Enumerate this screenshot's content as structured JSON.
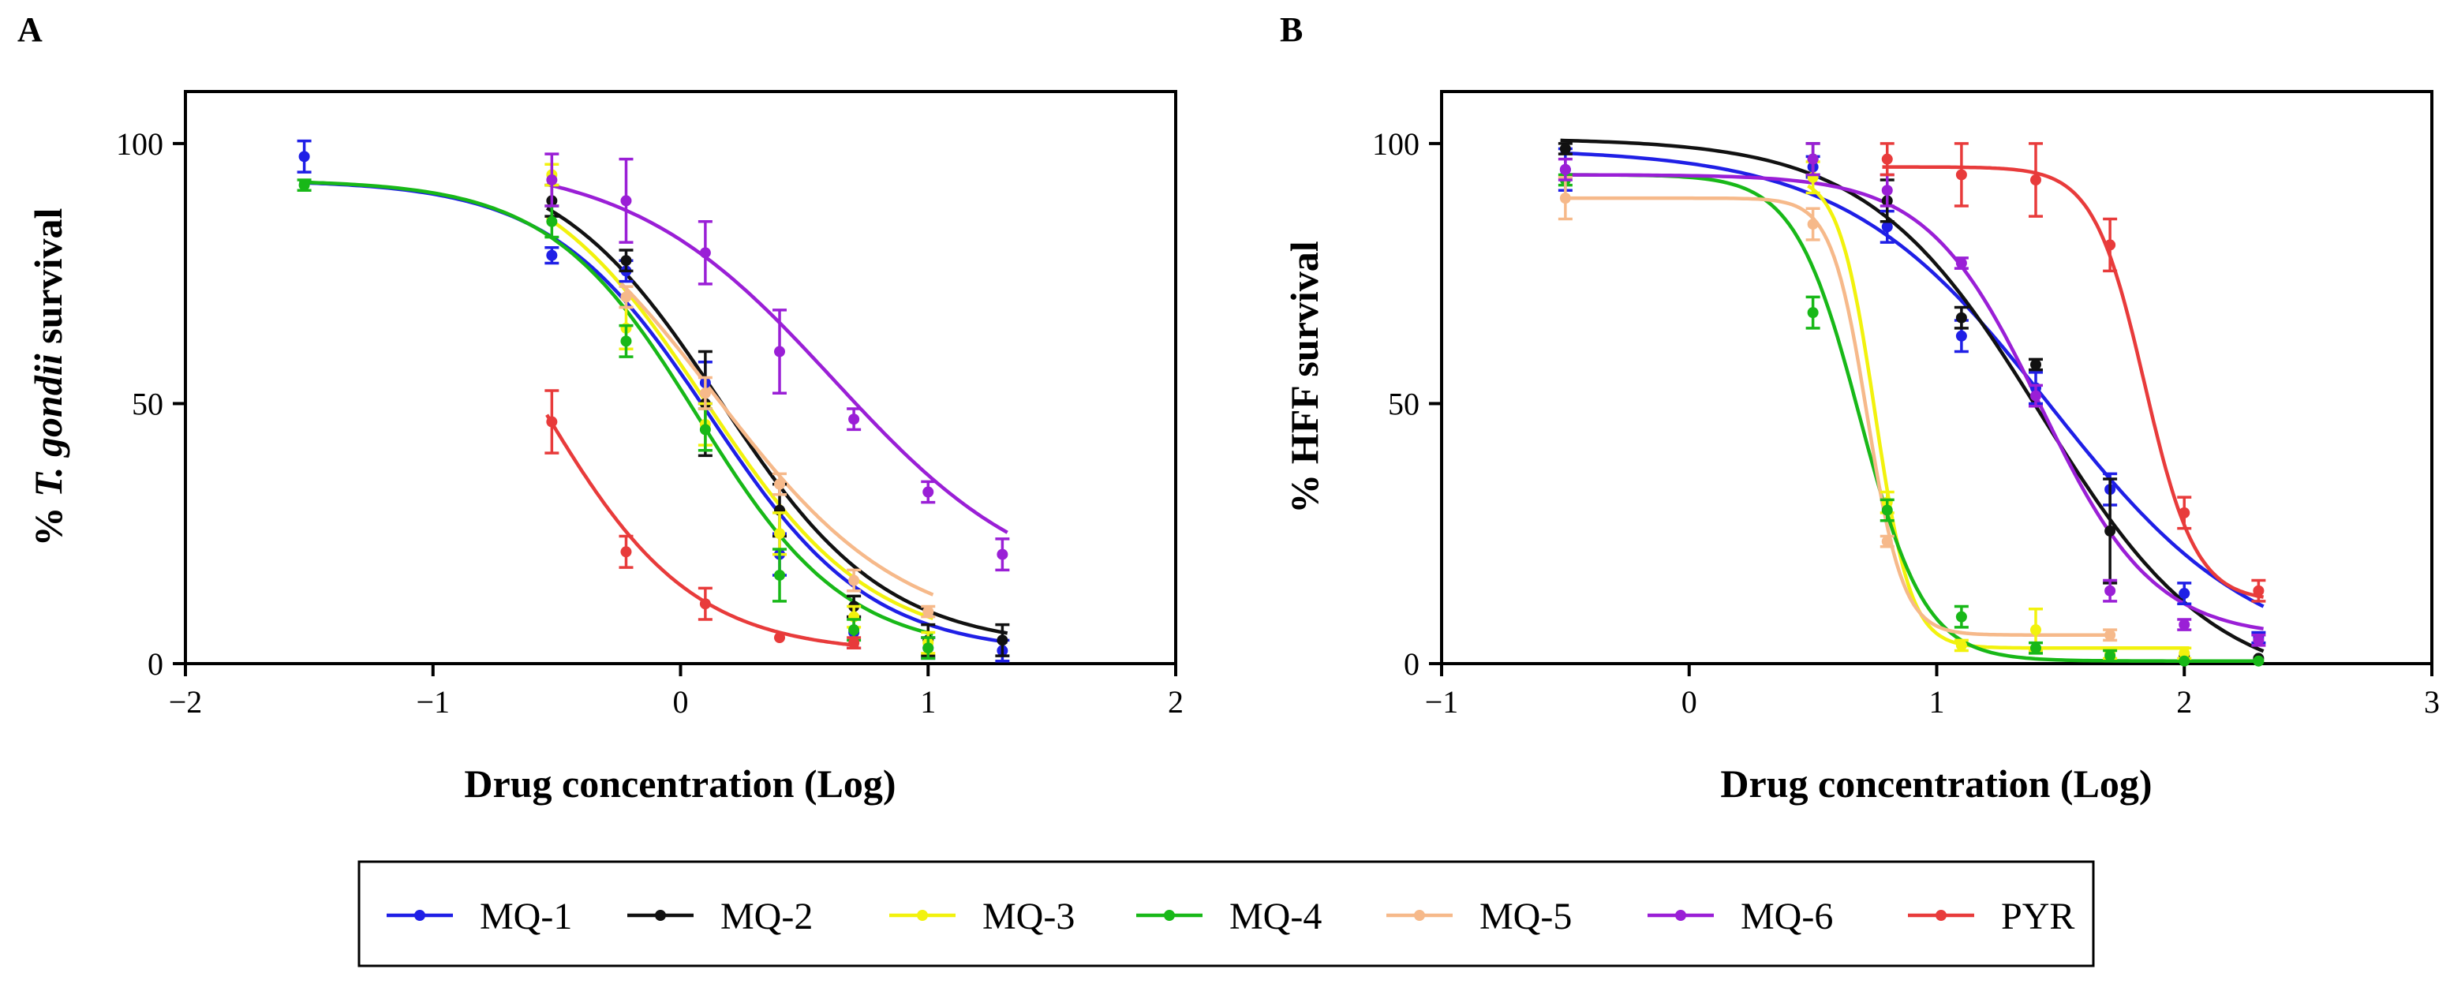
{
  "legend": {
    "items": [
      {
        "label": "MQ-1",
        "color": "#1f1fe6"
      },
      {
        "label": "MQ-2",
        "color": "#111111"
      },
      {
        "label": "MQ-3",
        "color": "#f2f20d"
      },
      {
        "label": "MQ-4",
        "color": "#18b818"
      },
      {
        "label": "MQ-5",
        "color": "#f6b98a"
      },
      {
        "label": "MQ-6",
        "color": "#9a1fd6"
      },
      {
        "label": "PYR",
        "color": "#e83b3b"
      }
    ]
  },
  "chart_data": [
    {
      "panel": "A",
      "type": "scatter",
      "title": "",
      "xlabel": "Drug concentration (Log)",
      "ylabel_prefix": "% ",
      "ylabel_italic": "T. gondii",
      "ylabel_suffix": " survival",
      "xlim": [
        -2,
        2
      ],
      "ylim": [
        0,
        110
      ],
      "xticks": [
        -2,
        -1,
        0,
        1,
        2
      ],
      "xtick_labels": [
        "−2",
        "−1",
        "0",
        "1",
        "2"
      ],
      "yticks": [
        0,
        50,
        100
      ],
      "ytick_labels": [
        "0",
        "50",
        "100"
      ],
      "series": [
        {
          "name": "MQ-1",
          "color": "#1f1fe6",
          "fit": {
            "top": 93,
            "bottom": 2,
            "logIC50": 0.12,
            "hill": 1.35
          },
          "points": [
            {
              "x": -1.52,
              "y": 97.5,
              "err": 3
            },
            {
              "x": -0.52,
              "y": 78.5,
              "err": 1.5
            },
            {
              "x": -0.22,
              "y": 75.5,
              "err": 2
            },
            {
              "x": 0.1,
              "y": 54,
              "err": 4
            },
            {
              "x": 0.4,
              "y": 21,
              "err": 4
            },
            {
              "x": 0.7,
              "y": 6,
              "err": 3
            },
            {
              "x": 1.0,
              "y": 3,
              "err": 2
            },
            {
              "x": 1.3,
              "y": 2.5,
              "err": 2
            }
          ]
        },
        {
          "name": "MQ-2",
          "color": "#111111",
          "fit": {
            "top": 98,
            "bottom": 3,
            "logIC50": 0.16,
            "hill": 1.3
          },
          "points": [
            {
              "x": -0.52,
              "y": 89,
              "err": 3
            },
            {
              "x": -0.22,
              "y": 77.5,
              "err": 2
            },
            {
              "x": 0.1,
              "y": 50,
              "err": 10
            },
            {
              "x": 0.4,
              "y": 29.5,
              "err": 5
            },
            {
              "x": 0.7,
              "y": 11,
              "err": 2
            },
            {
              "x": 1.0,
              "y": 4.5,
              "err": 3
            },
            {
              "x": 1.3,
              "y": 4.5,
              "err": 3
            }
          ]
        },
        {
          "name": "MQ-3",
          "color": "#f2f20d",
          "fit": {
            "top": 98,
            "bottom": 3,
            "logIC50": 0.1,
            "hill": 1.3
          },
          "points": [
            {
              "x": -0.52,
              "y": 94,
              "err": 2
            },
            {
              "x": -0.22,
              "y": 64.5,
              "err": 4
            },
            {
              "x": 0.1,
              "y": 46,
              "err": 4
            },
            {
              "x": 0.4,
              "y": 25,
              "err": 4
            },
            {
              "x": 0.7,
              "y": 9,
              "err": 2
            },
            {
              "x": 1.0,
              "y": 4,
              "err": 2
            }
          ]
        },
        {
          "name": "MQ-4",
          "color": "#18b818",
          "fit": {
            "top": 93,
            "bottom": 2,
            "logIC50": 0.07,
            "hill": 1.45
          },
          "points": [
            {
              "x": -1.52,
              "y": 92,
              "err": 1
            },
            {
              "x": -0.52,
              "y": 85,
              "err": 3
            },
            {
              "x": -0.22,
              "y": 62,
              "err": 3
            },
            {
              "x": 0.1,
              "y": 45,
              "err": 4
            },
            {
              "x": 0.4,
              "y": 17,
              "err": 5
            },
            {
              "x": 0.7,
              "y": 6.5,
              "err": 2
            },
            {
              "x": 1.0,
              "y": 3,
              "err": 2
            }
          ]
        },
        {
          "name": "MQ-5",
          "color": "#f6b98a",
          "fit": {
            "top": 98,
            "bottom": 5,
            "logIC50": 0.14,
            "hill": 1.15
          },
          "points": [
            {
              "x": -0.22,
              "y": 70.5,
              "err": 2
            },
            {
              "x": 0.1,
              "y": 52,
              "err": 3
            },
            {
              "x": 0.4,
              "y": 34.5,
              "err": 2
            },
            {
              "x": 0.7,
              "y": 16,
              "err": 2
            },
            {
              "x": 1.0,
              "y": 10,
              "err": 1
            }
          ]
        },
        {
          "name": "MQ-6",
          "color": "#9a1fd6",
          "fit": {
            "top": 97,
            "bottom": 12,
            "logIC50": 0.62,
            "hill": 1.05
          },
          "points": [
            {
              "x": -0.52,
              "y": 93,
              "err": 5
            },
            {
              "x": -0.22,
              "y": 89,
              "err": 8
            },
            {
              "x": 0.1,
              "y": 79,
              "err": 6
            },
            {
              "x": 0.4,
              "y": 60,
              "err": 8
            },
            {
              "x": 0.7,
              "y": 47,
              "err": 2
            },
            {
              "x": 1.0,
              "y": 33,
              "err": 2
            },
            {
              "x": 1.3,
              "y": 21,
              "err": 3
            }
          ]
        },
        {
          "name": "PYR",
          "color": "#e83b3b",
          "fit": {
            "top": 100,
            "bottom": 2,
            "logIC50": -0.58,
            "hill": 1.4
          },
          "points": [
            {
              "x": -0.52,
              "y": 46.5,
              "err": 6
            },
            {
              "x": -0.22,
              "y": 21.5,
              "err": 3
            },
            {
              "x": 0.1,
              "y": 11.5,
              "err": 3
            },
            {
              "x": 0.4,
              "y": 5,
              "err": 0
            },
            {
              "x": 0.7,
              "y": 4,
              "err": 1
            }
          ]
        }
      ]
    },
    {
      "panel": "B",
      "type": "scatter",
      "title": "",
      "xlabel": "Drug concentration (Log)",
      "ylabel_prefix": "% ",
      "ylabel_italic": "",
      "ylabel_suffix": "HFF survival",
      "xlim": [
        -1,
        3
      ],
      "ylim": [
        0,
        110
      ],
      "xticks": [
        -1,
        0,
        1,
        2,
        3
      ],
      "xtick_labels": [
        "−1",
        "0",
        "1",
        "2",
        "3"
      ],
      "yticks": [
        0,
        50,
        100
      ],
      "ytick_labels": [
        "0",
        "50",
        "100"
      ],
      "series": [
        {
          "name": "MQ-1",
          "color": "#1f1fe6",
          "fit": {
            "top": 99,
            "bottom": 0,
            "logIC50": 1.46,
            "hill": 1.05
          },
          "points": [
            {
              "x": -0.5,
              "y": 95,
              "err": 4
            },
            {
              "x": 0.5,
              "y": 95.5,
              "err": 2
            },
            {
              "x": 0.8,
              "y": 84,
              "err": 3
            },
            {
              "x": 1.1,
              "y": 63,
              "err": 3
            },
            {
              "x": 1.4,
              "y": 53,
              "err": 3
            },
            {
              "x": 1.7,
              "y": 33.5,
              "err": 3
            },
            {
              "x": 2.0,
              "y": 13.5,
              "err": 2
            },
            {
              "x": 2.3,
              "y": 5,
              "err": 1
            }
          ]
        },
        {
          "name": "MQ-2",
          "color": "#111111",
          "fit": {
            "top": 101,
            "bottom": -5,
            "logIC50": 1.42,
            "hill": 1.25
          },
          "points": [
            {
              "x": -0.5,
              "y": 99,
              "err": 1
            },
            {
              "x": 0.5,
              "y": 97,
              "err": 3
            },
            {
              "x": 0.8,
              "y": 89,
              "err": 4
            },
            {
              "x": 1.1,
              "y": 66.5,
              "err": 2
            },
            {
              "x": 1.4,
              "y": 57.5,
              "err": 1
            },
            {
              "x": 1.7,
              "y": 25.5,
              "err": 10
            },
            {
              "x": 2.0,
              "y": 1.5,
              "err": 0
            },
            {
              "x": 2.3,
              "y": 1,
              "err": 0
            }
          ]
        },
        {
          "name": "MQ-3",
          "color": "#f2f20d",
          "fit": {
            "top": 94,
            "bottom": 3,
            "logIC50": 0.75,
            "hill": 6.0
          },
          "points": [
            {
              "x": 0.5,
              "y": 93.5,
              "err": 3
            },
            {
              "x": 0.8,
              "y": 31,
              "err": 2
            },
            {
              "x": 1.1,
              "y": 3.5,
              "err": 1
            },
            {
              "x": 1.4,
              "y": 6.5,
              "err": 4
            },
            {
              "x": 1.7,
              "y": 2,
              "err": 1
            },
            {
              "x": 2.0,
              "y": 2,
              "err": 1
            }
          ]
        },
        {
          "name": "MQ-4",
          "color": "#18b818",
          "fit": {
            "top": 94,
            "bottom": 0.5,
            "logIC50": 0.69,
            "hill": 3.3
          },
          "points": [
            {
              "x": -0.5,
              "y": 93,
              "err": 1
            },
            {
              "x": 0.5,
              "y": 67.5,
              "err": 3
            },
            {
              "x": 0.8,
              "y": 29.5,
              "err": 2
            },
            {
              "x": 1.1,
              "y": 9,
              "err": 2
            },
            {
              "x": 1.4,
              "y": 3,
              "err": 1
            },
            {
              "x": 1.7,
              "y": 1.5,
              "err": 1
            },
            {
              "x": 2.0,
              "y": 0.5,
              "err": 0
            },
            {
              "x": 2.3,
              "y": 0.5,
              "err": 0
            }
          ]
        },
        {
          "name": "MQ-5",
          "color": "#f6b98a",
          "fit": {
            "top": 89.5,
            "bottom": 5.5,
            "logIC50": 0.72,
            "hill": 6.0
          },
          "points": [
            {
              "x": -0.5,
              "y": 89.5,
              "err": 4
            },
            {
              "x": 0.5,
              "y": 84.5,
              "err": 3
            },
            {
              "x": 0.8,
              "y": 23.5,
              "err": 1
            },
            {
              "x": 1.7,
              "y": 5.5,
              "err": 1
            }
          ]
        },
        {
          "name": "MQ-6",
          "color": "#9a1fd6",
          "fit": {
            "top": 94,
            "bottom": 5,
            "logIC50": 1.42,
            "hill": 1.9
          },
          "points": [
            {
              "x": -0.5,
              "y": 95,
              "err": 2
            },
            {
              "x": 0.5,
              "y": 97,
              "err": 3
            },
            {
              "x": 0.8,
              "y": 91,
              "err": 3
            },
            {
              "x": 1.1,
              "y": 77,
              "err": 1
            },
            {
              "x": 1.4,
              "y": 51.5,
              "err": 2
            },
            {
              "x": 1.7,
              "y": 14,
              "err": 2
            },
            {
              "x": 2.0,
              "y": 7.5,
              "err": 1
            },
            {
              "x": 2.3,
              "y": 4.5,
              "err": 1
            }
          ]
        },
        {
          "name": "PYR",
          "color": "#e83b3b",
          "fit": {
            "top": 95.5,
            "bottom": 12,
            "logIC50": 1.84,
            "hill": 4.2
          },
          "points": [
            {
              "x": 0.8,
              "y": 97,
              "err": 3
            },
            {
              "x": 1.1,
              "y": 94,
              "err": 6
            },
            {
              "x": 1.4,
              "y": 93,
              "err": 7
            },
            {
              "x": 1.7,
              "y": 80.5,
              "err": 5
            },
            {
              "x": 2.0,
              "y": 29,
              "err": 3
            },
            {
              "x": 2.3,
              "y": 14,
              "err": 2
            }
          ]
        }
      ]
    }
  ]
}
